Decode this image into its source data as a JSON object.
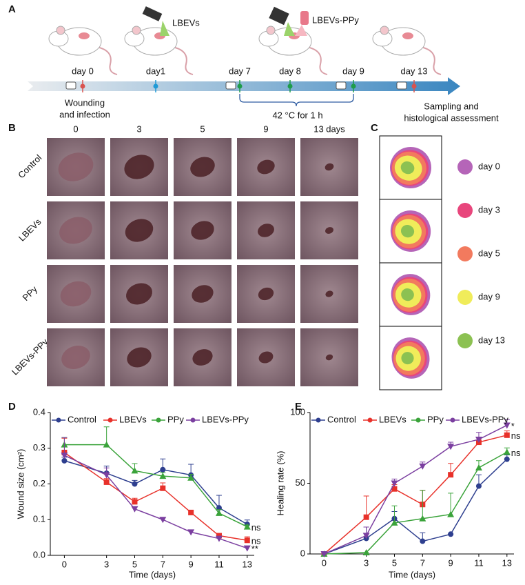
{
  "panel_labels": [
    "A",
    "B",
    "C",
    "D",
    "E"
  ],
  "panel_a": {
    "events": [
      {
        "label": "day 0",
        "color": "#d9534f"
      },
      {
        "label": "day1",
        "color": "#1f9ad6"
      },
      {
        "label": "day 7",
        "color": "#1e9c4a"
      },
      {
        "label": "day 8",
        "color": "#1e9c4a"
      },
      {
        "label": "day 9",
        "color": "#1e9c4a"
      },
      {
        "label": "day 13",
        "color": "#d9534f"
      }
    ],
    "treatments": [
      {
        "label": "LBEVs",
        "color": "#1f9ad6"
      },
      {
        "label": "LBEVs-PPy",
        "color": "#2e6b2e"
      }
    ],
    "wounding": [
      "Wounding",
      "and infection"
    ],
    "heat": "42 °C for 1 h",
    "sampling": [
      "Sampling and",
      "histological assessment"
    ]
  },
  "panel_b": {
    "columns": [
      "0",
      "3",
      "5",
      "9",
      "13 days"
    ],
    "rows": [
      "Control",
      "LBEVs",
      "PPy",
      "LBEVs-PPy"
    ]
  },
  "panel_c": {
    "legend": [
      {
        "label": "day 0",
        "color": "#b565b8"
      },
      {
        "label": "day 3",
        "color": "#e8467c"
      },
      {
        "label": "day 5",
        "color": "#f27a5e"
      },
      {
        "label": "day 9",
        "color": "#f0ec5a"
      },
      {
        "label": "day 13",
        "color": "#8cc152"
      }
    ]
  },
  "chart_data": [
    {
      "type": "line",
      "x_label": "Time (days)",
      "y_label": "Wound size (cm²)",
      "x": [
        0,
        3,
        5,
        7,
        9,
        11,
        13
      ],
      "xlim": [
        -1,
        13.5
      ],
      "xticks": [
        0,
        3,
        5,
        7,
        9,
        11,
        13
      ],
      "ylim": [
        0,
        0.4
      ],
      "yticks": [
        {
          "value": 0,
          "label": "0.0"
        },
        0.1,
        0.2,
        0.3,
        0.4
      ],
      "series": [
        {
          "name": "Control",
          "color": "#2e3f8f",
          "marker": "circle",
          "values": [
            0.265,
            0.23,
            0.2,
            0.24,
            0.225,
            0.133,
            0.087
          ],
          "errors": [
            0.01,
            0.02,
            0.01,
            0.03,
            0.03,
            0.035,
            0.012
          ]
        },
        {
          "name": "LBEVs",
          "color": "#e8312a",
          "marker": "square",
          "values": [
            0.288,
            0.205,
            0.15,
            0.188,
            0.12,
            0.055,
            0.042
          ],
          "errors": [
            0.04,
            0.01,
            0.01,
            0.015,
            0.005,
            0.005,
            0.01
          ],
          "annotation": "ns"
        },
        {
          "name": "PPy",
          "color": "#3aa33a",
          "marker": "triangle-up",
          "values": [
            0.31,
            0.31,
            0.237,
            0.222,
            0.217,
            0.118,
            0.08
          ],
          "errors": [
            0.02,
            0.05,
            0.02,
            0.01,
            0.01,
            0.01,
            0.005
          ],
          "annotation": "ns"
        },
        {
          "name": "LBEVs-PPy",
          "color": "#7b3fa0",
          "marker": "triangle-down",
          "values": [
            0.28,
            0.225,
            0.13,
            0.1,
            0.065,
            0.047,
            0.02
          ],
          "errors": [
            0.05,
            0.02,
            0.005,
            0.005,
            0.005,
            0.005,
            0.005
          ],
          "annotation": "**"
        }
      ]
    },
    {
      "type": "line",
      "x_label": "Time (days)",
      "y_label": "Healing rate (%)",
      "x": [
        0,
        3,
        5,
        7,
        9,
        11,
        13
      ],
      "xlim": [
        -1,
        13.5
      ],
      "xticks": [
        0,
        3,
        5,
        7,
        9,
        11,
        13
      ],
      "ylim": [
        0,
        100
      ],
      "yticks": [
        0,
        50,
        100
      ],
      "series": [
        {
          "name": "Control",
          "color": "#2e3f8f",
          "marker": "circle",
          "values": [
            0,
            11,
            25,
            9,
            14,
            48,
            67
          ],
          "errors": [
            0,
            8,
            5,
            6,
            0,
            8,
            3
          ]
        },
        {
          "name": "LBEVs",
          "color": "#e8312a",
          "marker": "square",
          "values": [
            0,
            26,
            46,
            35,
            56,
            79,
            84
          ],
          "errors": [
            0,
            15,
            3,
            10,
            8,
            3,
            3
          ],
          "annotation": "ns"
        },
        {
          "name": "PPy",
          "color": "#3aa33a",
          "marker": "triangle-up",
          "values": [
            0,
            1,
            22,
            25,
            28,
            61,
            72
          ],
          "errors": [
            0,
            0,
            12,
            20,
            15,
            5,
            3
          ],
          "annotation": "ns"
        },
        {
          "name": "LBEVs-PPy",
          "color": "#7b3fa0",
          "marker": "triangle-down",
          "values": [
            0,
            13,
            50,
            62,
            76,
            81,
            91
          ],
          "errors": [
            0,
            6,
            3,
            3,
            3,
            5,
            4
          ],
          "annotation": "*"
        }
      ]
    }
  ]
}
